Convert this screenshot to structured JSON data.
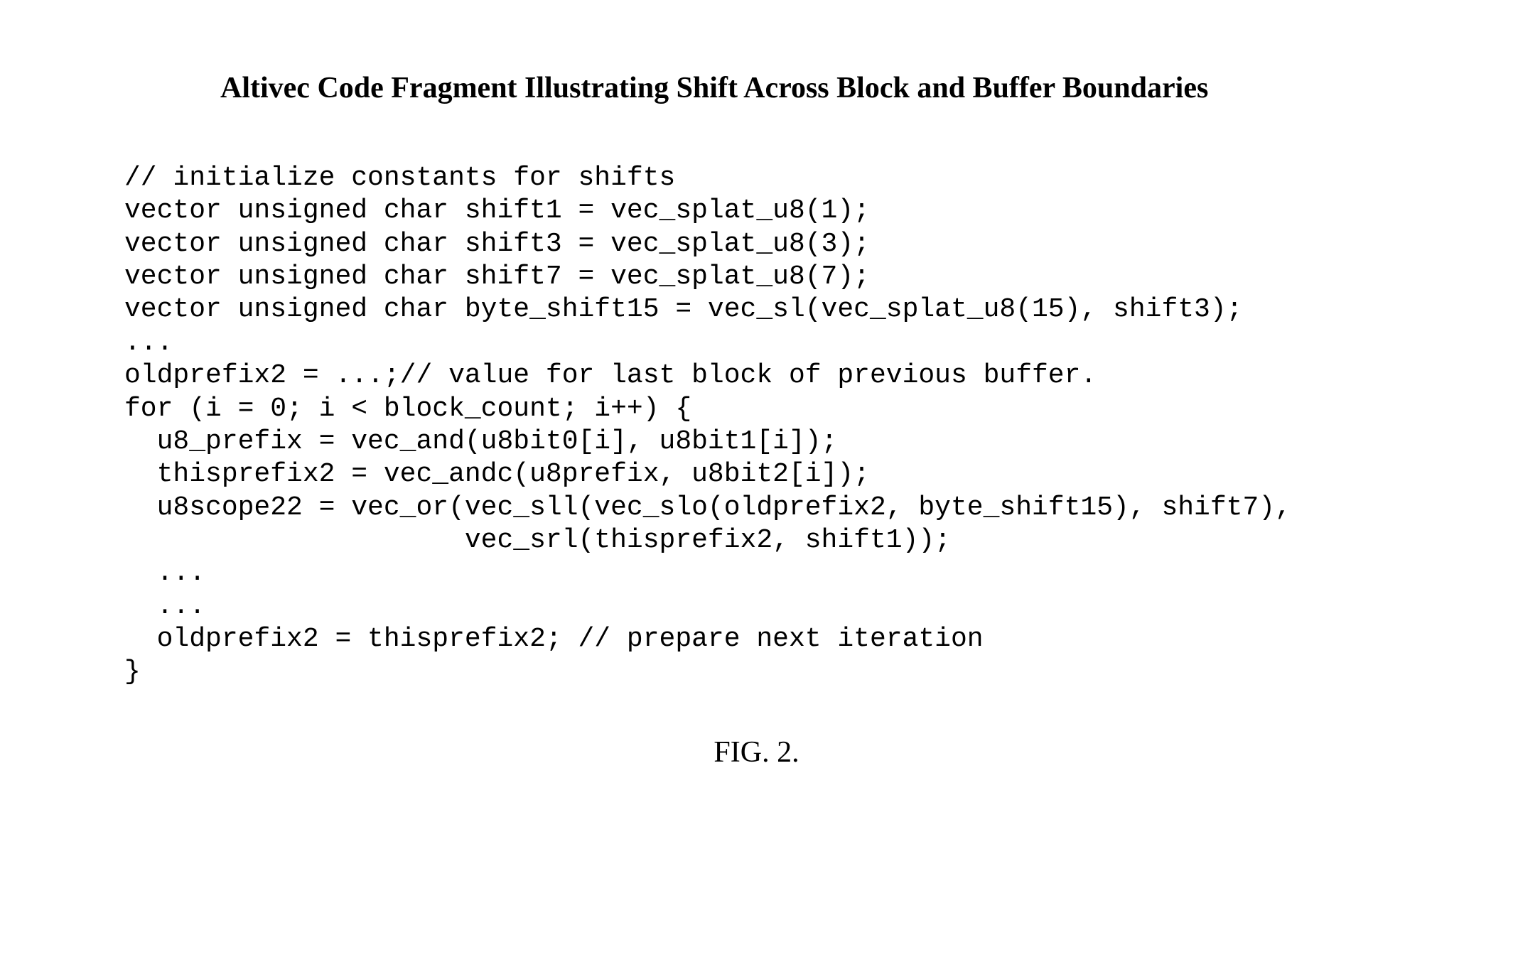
{
  "figure": {
    "title": "Altivec Code Fragment Illustrating Shift Across Block and Buffer Boundaries",
    "caption": "FIG. 2.",
    "code_lines": [
      "// initialize constants for shifts",
      "vector unsigned char shift1 = vec_splat_u8(1);",
      "vector unsigned char shift3 = vec_splat_u8(3);",
      "vector unsigned char shift7 = vec_splat_u8(7);",
      "vector unsigned char byte_shift15 = vec_sl(vec_splat_u8(15), shift3);",
      "...",
      "oldprefix2 = ...;// value for last block of previous buffer.",
      "for (i = 0; i < block_count; i++) {",
      "  u8_prefix = vec_and(u8bit0[i], u8bit1[i]);",
      "  thisprefix2 = vec_andc(u8prefix, u8bit2[i]);",
      "  u8scope22 = vec_or(vec_sll(vec_slo(oldprefix2, byte_shift15), shift7),",
      "                     vec_srl(thisprefix2, shift1));",
      "  ...",
      "  ...",
      "  oldprefix2 = thisprefix2; // prepare next iteration",
      "}"
    ]
  },
  "style": {
    "background_color": "#ffffff",
    "text_color": "#000000",
    "title_fontsize": 42,
    "title_font": "Times New Roman",
    "title_weight": "bold",
    "code_fontsize": 38,
    "code_font": "Courier New",
    "caption_fontsize": 42,
    "caption_font": "Times New Roman"
  }
}
